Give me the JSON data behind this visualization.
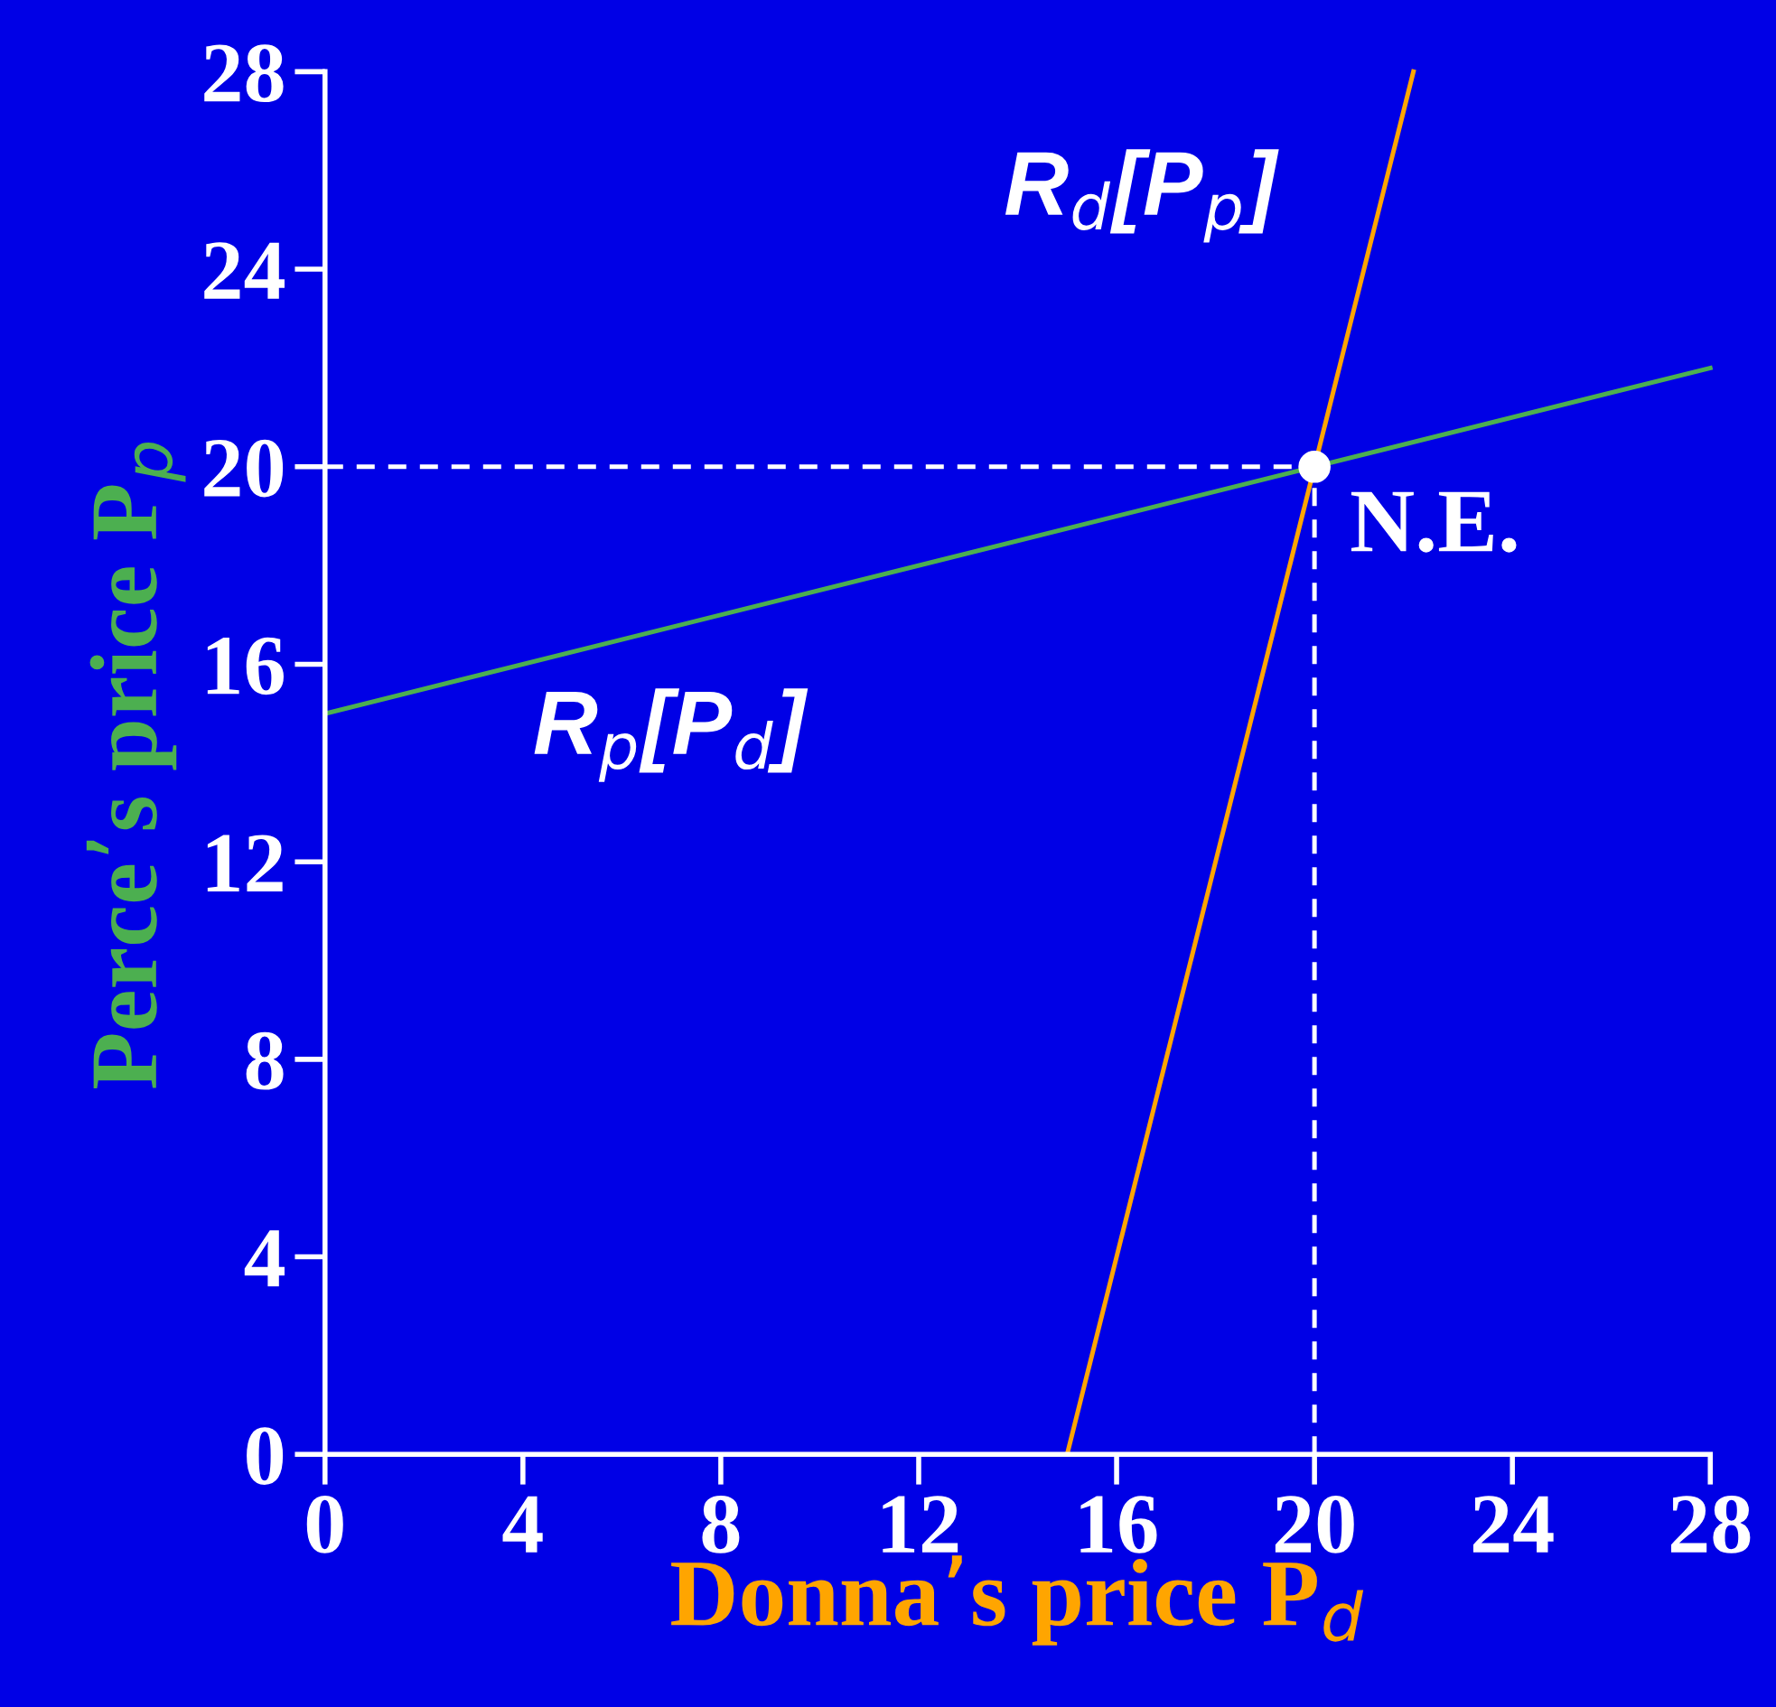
{
  "chart_data": {
    "type": "line",
    "xlabel": "Donna’s price P$_{d}$",
    "ylabel": "Perce’s price P$_{p}$",
    "xlim": [
      0,
      28
    ],
    "ylim": [
      0,
      28
    ],
    "xticks": [
      0,
      4,
      8,
      12,
      16,
      20,
      24,
      28
    ],
    "yticks": [
      0,
      4,
      8,
      12,
      16,
      20,
      24,
      28
    ],
    "grid": false,
    "marker": "none",
    "series": [
      {
        "color": "#4caf50",
        "x": [
          0,
          28
        ],
        "values": [
          15,
          22
        ],
        "line_style": "solid"
      },
      {
        "color": "#ffa500",
        "x": [
          15,
          22
        ],
        "values": [
          0,
          28
        ],
        "line_style": "solid"
      },
      {
        "color": "#ffffff",
        "x": [
          0,
          20
        ],
        "values": [
          20,
          20
        ],
        "line_style": "dashed"
      },
      {
        "color": "#ffffff",
        "x": [
          20,
          20
        ],
        "values": [
          0,
          20
        ],
        "line_style": "dashed"
      },
      {
        "type": "scatter",
        "color": "#ffffff",
        "x": [
          20
        ],
        "values": [
          20
        ],
        "marker": "circle"
      }
    ],
    "annotations": [
      "R$_{d}$[P$_{p}$]",
      "R$_{p}$[P$_{d}$]",
      {
        "text": "N.E.",
        "x": 20,
        "y": 20
      }
    ]
  }
}
